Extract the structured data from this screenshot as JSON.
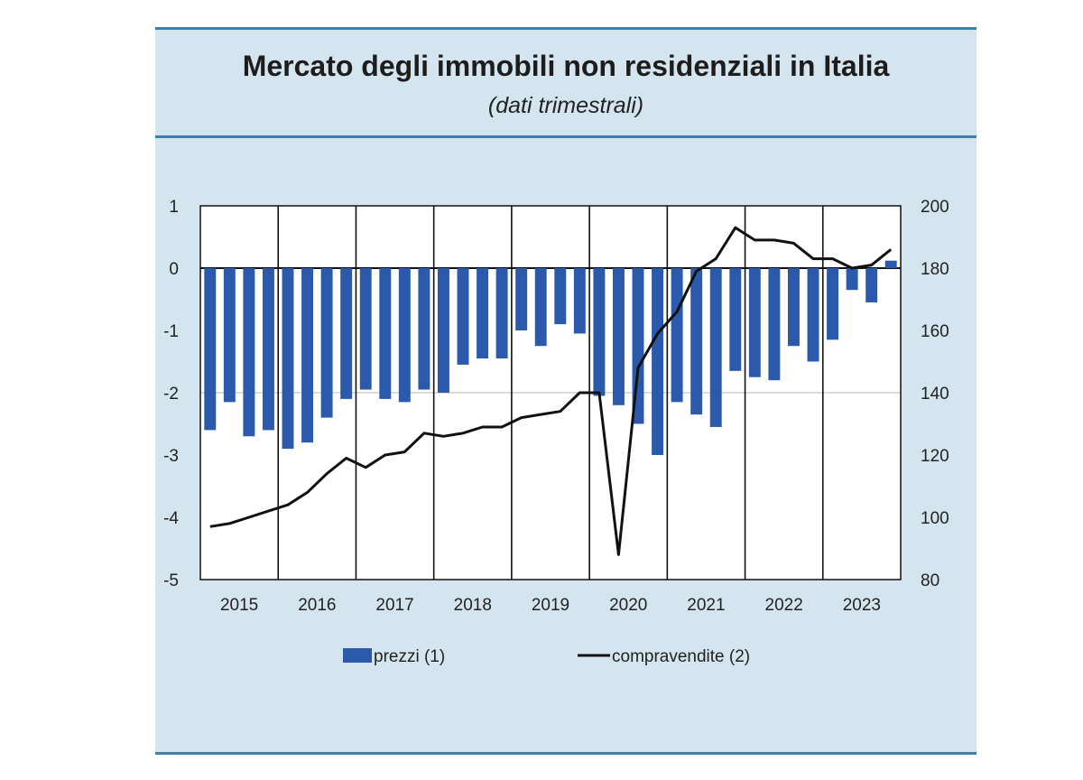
{
  "chart_data": {
    "type": "bar+line",
    "title": "Mercato degli immobili non residenziali in Italia",
    "subtitle": "(dati trimestrali)",
    "years": [
      "2015",
      "2016",
      "2017",
      "2018",
      "2019",
      "2020",
      "2021",
      "2022",
      "2023"
    ],
    "quarters_per_year": 4,
    "y_left": {
      "min": -5,
      "max": 1,
      "ticks": [
        "1",
        "0",
        "-1",
        "-2",
        "-3",
        "-4",
        "-5"
      ]
    },
    "y_right": {
      "min": 80,
      "max": 200,
      "ticks": [
        "200",
        "180",
        "160",
        "140",
        "120",
        "100",
        "80"
      ]
    },
    "grid_lines": [
      0,
      -2
    ],
    "series": [
      {
        "name": "prezzi (1)",
        "type": "bar",
        "axis": "left",
        "color": "#2b5aad",
        "values": [
          -2.6,
          -2.15,
          -2.7,
          -2.6,
          -2.9,
          -2.8,
          -2.4,
          -2.1,
          -1.95,
          -2.1,
          -2.15,
          -1.95,
          -2.0,
          -1.55,
          -1.45,
          -1.45,
          -1.0,
          -1.25,
          -0.9,
          -1.05,
          -2.05,
          -2.2,
          -2.5,
          -3.0,
          -2.15,
          -2.35,
          -2.55,
          -1.65,
          -1.75,
          -1.8,
          -1.25,
          -1.5,
          -1.15,
          -0.35,
          -0.55,
          0.12
        ]
      },
      {
        "name": "compravendite (2)",
        "type": "line",
        "axis": "right",
        "color": "#111111",
        "values": [
          97,
          98,
          100,
          102,
          104,
          108,
          114,
          119,
          116,
          120,
          121,
          127,
          126,
          127,
          129,
          129,
          132,
          133,
          134,
          140,
          140,
          88,
          148,
          159,
          166,
          179,
          183,
          193,
          189,
          189,
          188,
          183,
          183,
          180,
          181,
          186
        ]
      }
    ],
    "legend": {
      "position": "bottom",
      "items": [
        "prezzi (1)",
        "compravendite (2)"
      ]
    }
  }
}
